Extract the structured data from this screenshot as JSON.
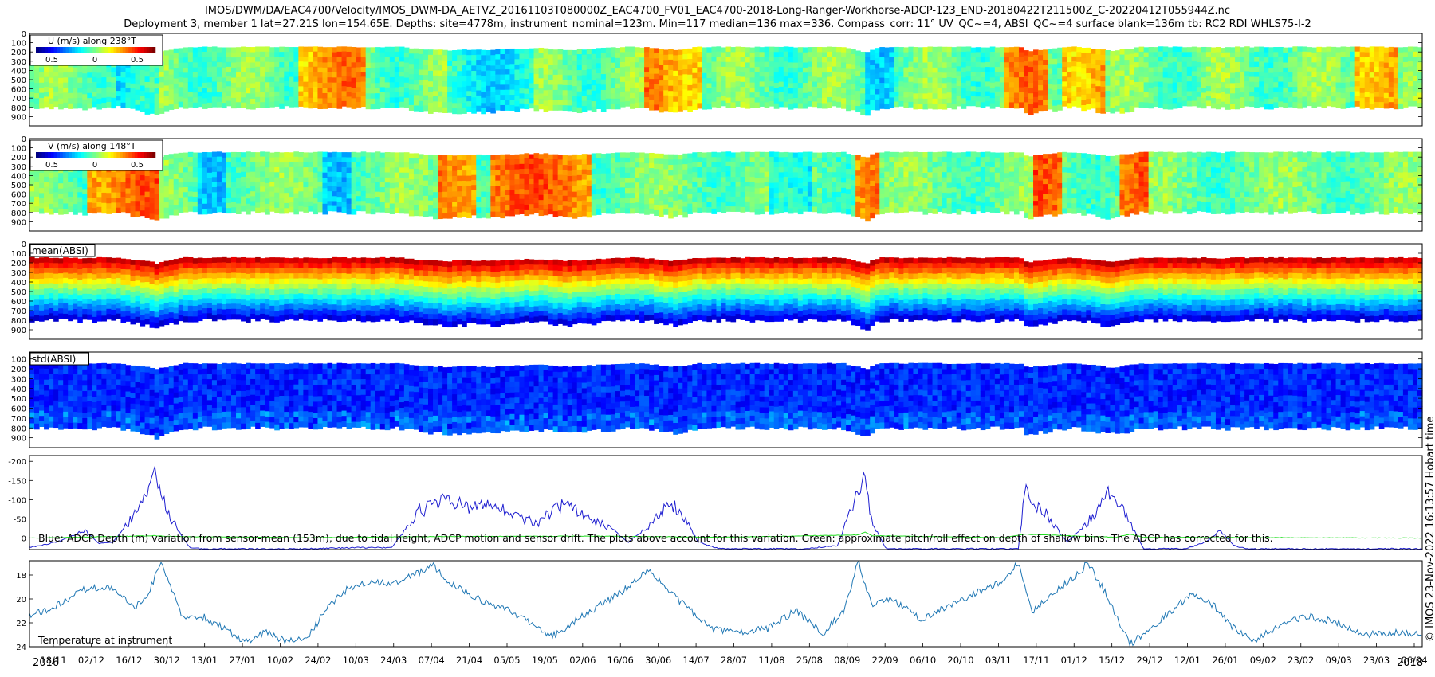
{
  "title_line1": "IMOS/DWM/DA/EAC4700/Velocity/IMOS_DWM-DA_AETVZ_20161103T080000Z_EAC4700_FV01_EAC4700-2018-Long-Ranger-Workhorse-ADCP-123_END-20180422T211500Z_C-20220412T055944Z.nc",
  "title_line2": "Deployment 3, member 1 lat=27.21S lon=154.65E. Depths: site=4778m, instrument_nominal=123m. Min=117 median=136 max=336. Compass_corr: 11° UV_QC~=4, ABSI_QC~=4 surface blank=136m tb: RC2 RDI WHLS75-I-2",
  "side_label": "© IMOS 23-Nov-2022 16:13:57 Hobart time",
  "colors": {
    "depth_line": "#1f1fd0",
    "pitch_line": "#22dd22",
    "temp_line": "#1f77b4",
    "jet_dark_blue": "#00008f",
    "jet_dark_red": "#800000"
  },
  "chart_data": [
    {
      "type": "heatmap",
      "name": "U velocity",
      "legend_title": "U (m/s) along 238°T",
      "colorbar_ticks": [
        "0.5",
        "0",
        "0.5"
      ],
      "yticks": [
        "0",
        "100",
        "200",
        "300",
        "400",
        "500",
        "600",
        "700",
        "800",
        "900"
      ],
      "ylim": [
        0,
        1000
      ],
      "top_depth_typical": 140,
      "bottom_depth_typical": 780,
      "field": "u"
    },
    {
      "type": "heatmap",
      "name": "V velocity",
      "legend_title": "V (m/s) along 148°T",
      "colorbar_ticks": [
        "0.5",
        "0",
        "0.5"
      ],
      "yticks": [
        "0",
        "100",
        "200",
        "300",
        "400",
        "500",
        "600",
        "700",
        "800",
        "900"
      ],
      "ylim": [
        0,
        1000
      ],
      "top_depth_typical": 140,
      "bottom_depth_typical": 780,
      "field": "v"
    },
    {
      "type": "heatmap",
      "name": "Mean backscatter",
      "legend_title": "mean(ABSI)",
      "yticks": [
        "0",
        "100",
        "200",
        "300",
        "400",
        "500",
        "600",
        "700",
        "800",
        "900"
      ],
      "ylim": [
        0,
        1000
      ],
      "top_depth_typical": 140,
      "bottom_depth_typical": 780,
      "field": "mean"
    },
    {
      "type": "heatmap",
      "name": "Std backscatter",
      "legend_title": "std(ABSI)",
      "yticks": [
        "100",
        "200",
        "300",
        "400",
        "500",
        "600",
        "700",
        "800",
        "900"
      ],
      "ylim": [
        30,
        1000
      ],
      "top_depth_typical": 140,
      "bottom_depth_typical": 780,
      "field": "std"
    },
    {
      "type": "line",
      "name": "ADCP depth variation",
      "ylabel": "",
      "yticks": [
        "0",
        "-50",
        "-100",
        "-150",
        "-200"
      ],
      "ylim": [
        -215,
        30
      ],
      "annotation": "Blue: ADCP Depth (m) variation from sensor-mean (153m), due to tidal height, ADCP motion and sensor drift. The plots above account for this variation. Green: approximate pitch/roll effect on depth of shallow bins. The ADCP has corrected for this.",
      "series": [
        {
          "name": "ADCP depth (blue)",
          "x": [
            0,
            0.02,
            0.04,
            0.05,
            0.06,
            0.075,
            0.085,
            0.09,
            0.095,
            0.105,
            0.115,
            0.125,
            0.135,
            0.165,
            0.2,
            0.235,
            0.26,
            0.28,
            0.29,
            0.3,
            0.315,
            0.33,
            0.345,
            0.365,
            0.385,
            0.4,
            0.415,
            0.43,
            0.445,
            0.46,
            0.47,
            0.48,
            0.495,
            0.51,
            0.53,
            0.555,
            0.58,
            0.595,
            0.6,
            0.605,
            0.615,
            0.66,
            0.7,
            0.71,
            0.715,
            0.72,
            0.73,
            0.745,
            0.76,
            0.775,
            0.79,
            0.8,
            0.83,
            0.845,
            0.855,
            0.865,
            0.875,
            0.9,
            0.95,
            1.0
          ],
          "values": [
            25,
            10,
            -20,
            15,
            10,
            -60,
            -120,
            -175,
            -110,
            -30,
            25,
            28,
            28,
            28,
            28,
            25,
            25,
            -70,
            -90,
            -100,
            -80,
            -95,
            -60,
            -40,
            -95,
            -60,
            -30,
            10,
            -30,
            -90,
            -60,
            10,
            28,
            28,
            28,
            28,
            20,
            -120,
            -160,
            -40,
            28,
            28,
            28,
            28,
            -140,
            -100,
            -60,
            10,
            -40,
            -120,
            -40,
            28,
            28,
            10,
            -20,
            20,
            28,
            28,
            28,
            28
          ]
        },
        {
          "name": "Pitch/roll effect (green)",
          "x": [
            0,
            0.09,
            0.1,
            0.2,
            0.3,
            0.4,
            0.5,
            0.595,
            0.6,
            0.605,
            0.7,
            0.715,
            0.73,
            0.78,
            0.79,
            0.8,
            1.0
          ],
          "values": [
            0,
            -6,
            -4,
            -1,
            -4,
            -5,
            -2,
            -8,
            -15,
            -6,
            -1,
            -10,
            -8,
            -2,
            -10,
            -2,
            0
          ]
        }
      ]
    },
    {
      "type": "line",
      "name": "Temperature at instrument",
      "annotation": "Temperature at instrument",
      "yticks": [
        "24",
        "22",
        "20",
        "18"
      ],
      "ylim": [
        16.8,
        24
      ],
      "series": [
        {
          "name": "Temperature",
          "x": [
            0,
            0.02,
            0.04,
            0.06,
            0.075,
            0.085,
            0.095,
            0.11,
            0.125,
            0.14,
            0.155,
            0.17,
            0.185,
            0.2,
            0.215,
            0.23,
            0.245,
            0.26,
            0.275,
            0.29,
            0.3,
            0.315,
            0.33,
            0.345,
            0.36,
            0.375,
            0.39,
            0.41,
            0.43,
            0.445,
            0.46,
            0.475,
            0.49,
            0.51,
            0.53,
            0.55,
            0.57,
            0.585,
            0.595,
            0.605,
            0.62,
            0.64,
            0.66,
            0.68,
            0.7,
            0.71,
            0.72,
            0.735,
            0.75,
            0.76,
            0.775,
            0.79,
            0.805,
            0.82,
            0.835,
            0.85,
            0.865,
            0.88,
            0.9,
            0.92,
            0.94,
            0.96,
            0.98,
            1.0
          ],
          "values": [
            21.5,
            20.5,
            19.2,
            19.0,
            20.8,
            19.5,
            17.0,
            21.5,
            21.5,
            22.5,
            23.6,
            22.8,
            23.6,
            23.2,
            20.5,
            19.0,
            18.5,
            18.8,
            18.0,
            17.2,
            18.5,
            19.5,
            20.5,
            21.0,
            22.0,
            23.2,
            22.0,
            20.5,
            19.0,
            17.5,
            19.5,
            21.0,
            22.5,
            22.8,
            22.5,
            21.0,
            22.8,
            21.0,
            16.9,
            20.5,
            20.0,
            21.8,
            20.5,
            19.5,
            18.5,
            16.9,
            21.0,
            19.5,
            18.2,
            17.0,
            20.0,
            23.8,
            22.5,
            21.0,
            19.5,
            20.5,
            22.5,
            23.5,
            22.0,
            21.5,
            22.0,
            23.0,
            22.8,
            23.0
          ]
        }
      ]
    }
  ],
  "x_axis": {
    "start_year": "2016",
    "end_year": "2018",
    "ticks": [
      "18/11",
      "02/12",
      "16/12",
      "30/12",
      "13/01",
      "27/01",
      "10/02",
      "24/02",
      "10/03",
      "24/03",
      "07/04",
      "21/04",
      "05/05",
      "19/05",
      "02/06",
      "16/06",
      "30/06",
      "14/07",
      "28/07",
      "11/08",
      "25/08",
      "08/09",
      "22/09",
      "06/10",
      "20/10",
      "03/11",
      "17/11",
      "01/12",
      "15/12",
      "29/12",
      "12/01",
      "26/01",
      "09/02",
      "23/02",
      "09/03",
      "23/03",
      "06/04"
    ]
  }
}
